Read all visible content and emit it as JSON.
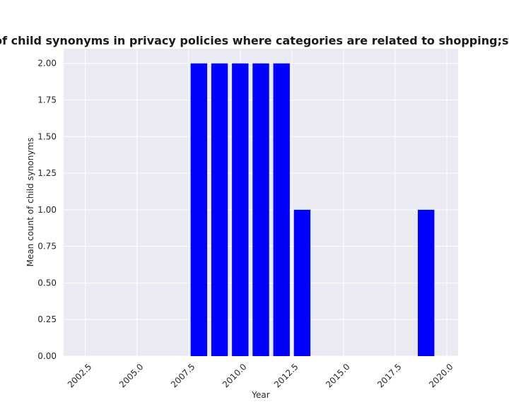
{
  "chart_data": {
    "type": "bar",
    "title": "Mean count of child synonyms in privacy policies where categories are related to shopping;streamingmedia",
    "xlabel": "Year",
    "ylabel": "Mean count of child synonyms",
    "x": [
      2008,
      2009,
      2010,
      2011,
      2012,
      2013,
      2019
    ],
    "values": [
      2,
      2,
      2,
      2,
      2,
      1,
      1
    ],
    "xlim": [
      2001.45,
      2020.55
    ],
    "ylim": [
      0,
      2.1
    ],
    "xticks": [
      2002.5,
      2005.0,
      2007.5,
      2010.0,
      2012.5,
      2015.0,
      2017.5,
      2020.0
    ],
    "xtick_labels": [
      "2002.5",
      "2005.0",
      "2007.5",
      "2010.0",
      "2012.5",
      "2015.0",
      "2017.5",
      "2020.0"
    ],
    "yticks": [
      0,
      0.25,
      0.5,
      0.75,
      1.0,
      1.25,
      1.5,
      1.75,
      2.0
    ],
    "ytick_labels": [
      "0.00",
      "0.25",
      "0.50",
      "0.75",
      "1.00",
      "1.25",
      "1.50",
      "1.75",
      "2.00"
    ],
    "bar_color": "#0000ff",
    "background_color": "#eaeaf2",
    "grid": true,
    "legend": "none"
  }
}
